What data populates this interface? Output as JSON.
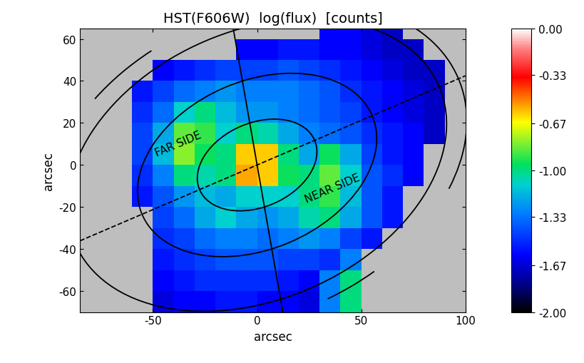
{
  "chart_data": {
    "type": "heatmap",
    "title": "HST(F606W)  log(flux)  [counts]",
    "x_label": "arcsec",
    "y_label": "arcsec",
    "xlim": [
      -85,
      100
    ],
    "ylim": [
      -70,
      65
    ],
    "xticks": [
      -50,
      0,
      50,
      100
    ],
    "yticks": [
      -60,
      -40,
      -20,
      0,
      20,
      40,
      60
    ],
    "x_edges": [
      -90,
      -80,
      -70,
      -60,
      -50,
      -40,
      -30,
      -20,
      -10,
      0,
      10,
      20,
      30,
      40,
      50,
      60,
      70,
      80,
      90,
      100
    ],
    "y_edges": [
      -70,
      -60,
      -50,
      -40,
      -30,
      -20,
      -10,
      0,
      10,
      20,
      30,
      40,
      50,
      60,
      70
    ],
    "cells": [
      [
        null,
        null,
        null,
        null,
        -1.65,
        -1.6,
        -1.6,
        -1.55,
        -1.55,
        -1.6,
        -1.6,
        -1.65,
        -1.3,
        -1.0,
        null,
        null,
        null,
        null,
        null
      ],
      [
        null,
        null,
        null,
        null,
        -1.6,
        -1.55,
        -1.5,
        -1.5,
        -1.5,
        -1.5,
        -1.55,
        -1.6,
        -1.3,
        -1.0,
        null,
        null,
        null,
        null,
        null
      ],
      [
        null,
        null,
        null,
        null,
        -1.55,
        -1.5,
        -1.45,
        -1.4,
        -1.4,
        -1.4,
        -1.45,
        -1.45,
        -1.5,
        -1.3,
        null,
        null,
        null,
        null,
        null
      ],
      [
        null,
        null,
        null,
        null,
        -1.5,
        -1.45,
        -1.35,
        -1.3,
        -1.3,
        -1.35,
        -1.3,
        -1.25,
        -1.3,
        -1.45,
        -1.55,
        null,
        null,
        null,
        null
      ],
      [
        null,
        null,
        null,
        null,
        -1.45,
        -1.35,
        -1.2,
        -1.1,
        -1.2,
        -1.25,
        -1.2,
        -1.05,
        -1.0,
        -1.2,
        -1.4,
        -1.55,
        null,
        null,
        null
      ],
      [
        null,
        null,
        null,
        -1.55,
        -1.4,
        -1.25,
        -1.15,
        -1.2,
        -1.1,
        -1.1,
        -1.1,
        -1.0,
        -0.9,
        -1.15,
        -1.4,
        -1.55,
        null,
        null,
        null
      ],
      [
        null,
        null,
        null,
        -1.5,
        -1.3,
        -1.0,
        -1.05,
        -1.0,
        -0.55,
        -0.6,
        -0.95,
        -1.0,
        -0.85,
        -1.1,
        -1.4,
        -1.5,
        -1.6,
        null,
        null
      ],
      [
        null,
        null,
        null,
        -1.45,
        -1.15,
        -0.8,
        -0.95,
        -1.0,
        -0.6,
        -0.6,
        -1.0,
        -1.2,
        -0.95,
        -1.2,
        -1.45,
        -1.55,
        -1.6,
        null,
        null
      ],
      [
        null,
        null,
        null,
        -1.45,
        -1.2,
        -0.85,
        -0.9,
        -1.1,
        -1.0,
        -1.05,
        -1.2,
        -1.3,
        -1.35,
        -1.4,
        -1.5,
        -1.55,
        -1.6,
        -1.7,
        null
      ],
      [
        null,
        null,
        null,
        -1.5,
        -1.35,
        -1.1,
        -1.0,
        -1.15,
        -1.25,
        -1.25,
        -1.3,
        -1.35,
        -1.4,
        -1.45,
        -1.55,
        -1.6,
        -1.65,
        -1.7,
        null
      ],
      [
        null,
        null,
        null,
        -1.55,
        -1.45,
        -1.35,
        -1.3,
        -1.25,
        -1.3,
        -1.3,
        -1.3,
        -1.35,
        -1.4,
        -1.5,
        -1.55,
        -1.6,
        -1.65,
        -1.7,
        null
      ],
      [
        null,
        null,
        null,
        null,
        -1.6,
        -1.55,
        -1.5,
        -1.45,
        -1.45,
        -1.45,
        -1.4,
        -1.45,
        -1.5,
        -1.55,
        -1.6,
        -1.65,
        -1.7,
        -1.7,
        null
      ],
      [
        null,
        null,
        null,
        null,
        null,
        null,
        null,
        null,
        -1.6,
        -1.6,
        -1.55,
        -1.55,
        -1.6,
        -1.6,
        -1.65,
        -1.7,
        -1.7,
        null,
        null
      ],
      [
        null,
        null,
        null,
        null,
        null,
        null,
        null,
        null,
        null,
        null,
        null,
        null,
        -1.6,
        -1.6,
        -1.65,
        -1.7,
        null,
        null,
        null
      ]
    ],
    "colorbar": {
      "range": [
        -2,
        0
      ],
      "ticks": [
        {
          "value": 0,
          "label": "0.00"
        },
        -0.33,
        -0.67,
        {
          "value": -1,
          "label": "-1.00"
        },
        -1.33,
        -1.67,
        {
          "value": -2,
          "label": "-2.00"
        }
      ]
    },
    "ellipses": {
      "semi_major": [
        30,
        60,
        95
      ],
      "semi_minor": [
        20,
        40,
        64
      ],
      "position_angle": 23
    },
    "arcs": {
      "semi_major": 105,
      "semi_minor": 72,
      "position_angle": 23,
      "segments": [
        [
          110,
          135
        ],
        [
          -30,
          20
        ],
        [
          -85,
          -65
        ]
      ]
    },
    "lines": [
      {
        "angle": 100,
        "line_style": "solid"
      },
      {
        "angle": 23,
        "line_style": "dashed"
      }
    ],
    "annotations": [
      "FAR SIDE",
      "NEAR SIDE"
    ]
  }
}
